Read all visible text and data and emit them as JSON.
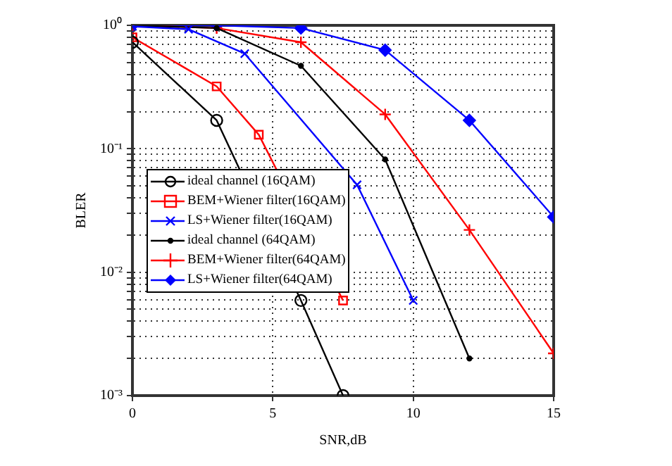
{
  "chart_data": {
    "type": "line",
    "xlabel": "SNR,dB",
    "ylabel": "BLER",
    "log": "y",
    "grid": true,
    "line_style": "solid",
    "legend": "left",
    "xlim": [
      0,
      15
    ],
    "xticks": [
      0,
      5,
      10,
      15
    ],
    "ylim": [
      0.001,
      1
    ],
    "yticks": [
      {
        "value": 0.001,
        "label": "10⁻³"
      },
      {
        "value": 0.002,
        "label": null
      },
      {
        "value": 0.003,
        "label": null
      },
      {
        "value": 0.004,
        "label": null
      },
      {
        "value": 0.005,
        "label": null
      },
      {
        "value": 0.006,
        "label": null
      },
      {
        "value": 0.007,
        "label": null
      },
      {
        "value": 0.008,
        "label": null
      },
      {
        "value": 0.009,
        "label": null
      },
      {
        "value": 0.01,
        "label": "10⁻²"
      },
      {
        "value": 0.02,
        "label": null
      },
      {
        "value": 0.03,
        "label": null
      },
      {
        "value": 0.04,
        "label": null
      },
      {
        "value": 0.05,
        "label": null
      },
      {
        "value": 0.06,
        "label": null
      },
      {
        "value": 0.07,
        "label": null
      },
      {
        "value": 0.08,
        "label": null
      },
      {
        "value": 0.09,
        "label": null
      },
      {
        "value": 0.1,
        "label": "10⁻¹"
      },
      {
        "value": 0.2,
        "label": null
      },
      {
        "value": 0.3,
        "label": null
      },
      {
        "value": 0.4,
        "label": null
      },
      {
        "value": 0.5,
        "label": null
      },
      {
        "value": 0.6,
        "label": null
      },
      {
        "value": 0.7,
        "label": null
      },
      {
        "value": 0.8,
        "label": null
      },
      {
        "value": 0.9,
        "label": null
      },
      {
        "value": 1,
        "label": "10⁰"
      }
    ],
    "series": [
      {
        "name": "ideal channel (16QAM)",
        "color": "#000000",
        "marker": "circle",
        "x": [
          0,
          3,
          6,
          7.5
        ],
        "values": [
          0.73,
          0.17,
          0.0059,
          0.001
        ]
      },
      {
        "name": "BEM+Wiener filter(16QAM)",
        "color": "#ff0000",
        "marker": "square",
        "x": [
          0,
          3,
          4.5,
          7.5
        ],
        "values": [
          0.8,
          0.32,
          0.13,
          0.0059
        ]
      },
      {
        "name": "LS+Wiener filter(16QAM)",
        "color": "#0000ff",
        "marker": "cross",
        "x": [
          0,
          2,
          4,
          8,
          10
        ],
        "values": [
          0.98,
          0.93,
          0.59,
          0.051,
          0.0059
        ]
      },
      {
        "name": "ideal channel (64QAM)",
        "color": "#000000",
        "marker": "circle",
        "x": [
          0,
          3,
          6,
          9,
          12
        ],
        "values": [
          1,
          0.95,
          0.47,
          0.082,
          0.002
        ]
      },
      {
        "name": "BEM+Wiener filter(64QAM)",
        "color": "#ff0000",
        "marker": "cross",
        "x": [
          0,
          3,
          6,
          9,
          12,
          15
        ],
        "values": [
          1,
          0.95,
          0.73,
          0.19,
          0.022,
          0.0022
        ]
      },
      {
        "name": "LS+Wiener filter(64QAM)",
        "color": "#0000ff",
        "marker": "diamond",
        "x": [
          0,
          3,
          6,
          9,
          12,
          15
        ],
        "values": [
          1,
          1,
          0.95,
          0.63,
          0.17,
          0.028
        ]
      }
    ]
  }
}
